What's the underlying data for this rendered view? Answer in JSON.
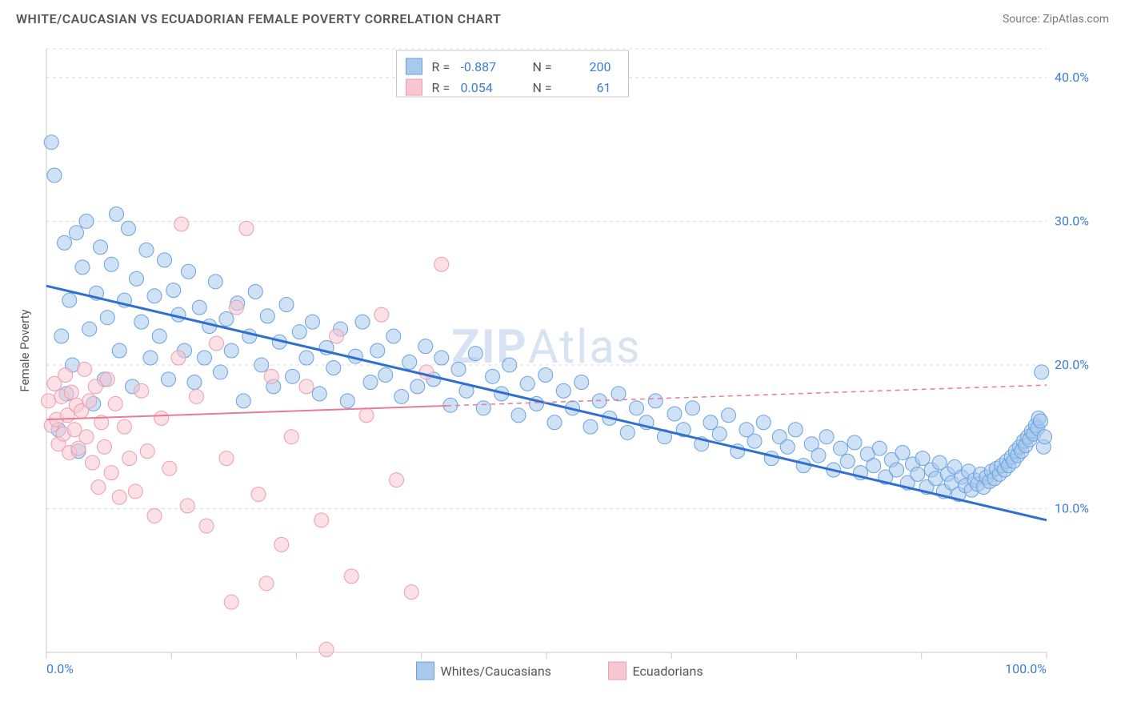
{
  "title": "WHITE/CAUCASIAN VS ECUADORIAN FEMALE POVERTY CORRELATION CHART",
  "source_label": "Source: ",
  "source_name": "ZipAtlas.com",
  "watermark_a": "ZIP",
  "watermark_b": "Atlas",
  "chart": {
    "type": "scatter",
    "ylabel": "Female Poverty",
    "xlim": [
      0,
      100
    ],
    "ylim": [
      0,
      42
    ],
    "yticks": [
      10,
      20,
      30,
      40
    ],
    "ytick_labels": [
      "10.0%",
      "20.0%",
      "30.0%",
      "40.0%"
    ],
    "xtick_labels": [
      "0.0%",
      "100.0%"
    ],
    "xtick_positions": [
      0,
      12.5,
      25,
      37.5,
      50,
      62.5,
      75,
      87.5,
      100
    ],
    "background_color": "#ffffff",
    "grid_color": "#dcdcdc",
    "border_color": "#c8c8c8",
    "series": [
      {
        "name": "Whites/Caucasians",
        "marker_fill": "#a8c8ec",
        "marker_stroke": "#6aa2de",
        "marker_fill_opacity": 0.55,
        "marker_radius": 9,
        "line_color": "#2f6fd0",
        "line_width": 3,
        "R": -0.887,
        "N": 200,
        "trend": {
          "x0": 0,
          "y0": 25.5,
          "x1": 100,
          "y1": 9.2,
          "solid_until": 100
        },
        "points": [
          [
            0.5,
            35.5
          ],
          [
            0.8,
            33.2
          ],
          [
            1.2,
            15.5
          ],
          [
            1.5,
            22
          ],
          [
            1.8,
            28.5
          ],
          [
            2,
            18
          ],
          [
            2.3,
            24.5
          ],
          [
            2.6,
            20
          ],
          [
            3,
            29.2
          ],
          [
            3.2,
            14
          ],
          [
            3.6,
            26.8
          ],
          [
            4,
            30
          ],
          [
            4.3,
            22.5
          ],
          [
            4.7,
            17.3
          ],
          [
            5,
            25
          ],
          [
            5.4,
            28.2
          ],
          [
            5.8,
            19
          ],
          [
            6.1,
            23.3
          ],
          [
            6.5,
            27
          ],
          [
            7,
            30.5
          ],
          [
            7.3,
            21
          ],
          [
            7.8,
            24.5
          ],
          [
            8.2,
            29.5
          ],
          [
            8.6,
            18.5
          ],
          [
            9,
            26
          ],
          [
            9.5,
            23
          ],
          [
            10,
            28
          ],
          [
            10.4,
            20.5
          ],
          [
            10.8,
            24.8
          ],
          [
            11.3,
            22
          ],
          [
            11.8,
            27.3
          ],
          [
            12.2,
            19
          ],
          [
            12.7,
            25.2
          ],
          [
            13.2,
            23.5
          ],
          [
            13.8,
            21
          ],
          [
            14.2,
            26.5
          ],
          [
            14.8,
            18.8
          ],
          [
            15.3,
            24
          ],
          [
            15.8,
            20.5
          ],
          [
            16.3,
            22.7
          ],
          [
            16.9,
            25.8
          ],
          [
            17.4,
            19.5
          ],
          [
            18,
            23.2
          ],
          [
            18.5,
            21
          ],
          [
            19.1,
            24.3
          ],
          [
            19.7,
            17.5
          ],
          [
            20.3,
            22
          ],
          [
            20.9,
            25.1
          ],
          [
            21.5,
            20
          ],
          [
            22.1,
            23.4
          ],
          [
            22.7,
            18.5
          ],
          [
            23.3,
            21.6
          ],
          [
            24,
            24.2
          ],
          [
            24.6,
            19.2
          ],
          [
            25.3,
            22.3
          ],
          [
            26,
            20.5
          ],
          [
            26.6,
            23
          ],
          [
            27.3,
            18
          ],
          [
            28,
            21.2
          ],
          [
            28.7,
            19.8
          ],
          [
            29.4,
            22.5
          ],
          [
            30.1,
            17.5
          ],
          [
            30.9,
            20.6
          ],
          [
            31.6,
            23
          ],
          [
            32.4,
            18.8
          ],
          [
            33.1,
            21
          ],
          [
            33.9,
            19.3
          ],
          [
            34.7,
            22
          ],
          [
            35.5,
            17.8
          ],
          [
            36.3,
            20.2
          ],
          [
            37.1,
            18.5
          ],
          [
            37.9,
            21.3
          ],
          [
            38.7,
            19
          ],
          [
            39.5,
            20.5
          ],
          [
            40.4,
            17.2
          ],
          [
            41.2,
            19.7
          ],
          [
            42,
            18.2
          ],
          [
            42.9,
            20.8
          ],
          [
            43.7,
            17
          ],
          [
            44.6,
            19.2
          ],
          [
            45.5,
            18
          ],
          [
            46.3,
            20
          ],
          [
            47.2,
            16.5
          ],
          [
            48.1,
            18.7
          ],
          [
            49,
            17.3
          ],
          [
            49.9,
            19.3
          ],
          [
            50.8,
            16
          ],
          [
            51.7,
            18.2
          ],
          [
            52.6,
            17
          ],
          [
            53.5,
            18.8
          ],
          [
            54.4,
            15.7
          ],
          [
            55.3,
            17.5
          ],
          [
            56.3,
            16.3
          ],
          [
            57.2,
            18
          ],
          [
            58.1,
            15.3
          ],
          [
            59,
            17
          ],
          [
            60,
            16
          ],
          [
            60.9,
            17.5
          ],
          [
            61.8,
            15
          ],
          [
            62.8,
            16.6
          ],
          [
            63.7,
            15.5
          ],
          [
            64.6,
            17
          ],
          [
            65.5,
            14.5
          ],
          [
            66.4,
            16
          ],
          [
            67.3,
            15.2
          ],
          [
            68.2,
            16.5
          ],
          [
            69.1,
            14
          ],
          [
            70,
            15.5
          ],
          [
            70.8,
            14.7
          ],
          [
            71.7,
            16
          ],
          [
            72.5,
            13.5
          ],
          [
            73.3,
            15
          ],
          [
            74.1,
            14.3
          ],
          [
            74.9,
            15.5
          ],
          [
            75.7,
            13
          ],
          [
            76.5,
            14.5
          ],
          [
            77.2,
            13.7
          ],
          [
            78,
            15
          ],
          [
            78.7,
            12.7
          ],
          [
            79.4,
            14.2
          ],
          [
            80.1,
            13.3
          ],
          [
            80.8,
            14.6
          ],
          [
            81.4,
            12.5
          ],
          [
            82.1,
            13.8
          ],
          [
            82.7,
            13
          ],
          [
            83.3,
            14.2
          ],
          [
            83.9,
            12.2
          ],
          [
            84.5,
            13.4
          ],
          [
            85,
            12.7
          ],
          [
            85.6,
            13.9
          ],
          [
            86.1,
            11.8
          ],
          [
            86.6,
            13.1
          ],
          [
            87.1,
            12.4
          ],
          [
            87.6,
            13.5
          ],
          [
            88,
            11.5
          ],
          [
            88.5,
            12.7
          ],
          [
            88.9,
            12.1
          ],
          [
            89.3,
            13.2
          ],
          [
            89.7,
            11.2
          ],
          [
            90.1,
            12.4
          ],
          [
            90.5,
            11.8
          ],
          [
            90.8,
            12.9
          ],
          [
            91.2,
            11
          ],
          [
            91.5,
            12.2
          ],
          [
            91.9,
            11.6
          ],
          [
            92.2,
            12.6
          ],
          [
            92.5,
            11.3
          ],
          [
            92.8,
            12
          ],
          [
            93.1,
            11.7
          ],
          [
            93.4,
            12.4
          ],
          [
            93.7,
            11.5
          ],
          [
            94,
            12.2
          ],
          [
            94.3,
            11.9
          ],
          [
            94.5,
            12.6
          ],
          [
            94.8,
            12.1
          ],
          [
            95,
            12.8
          ],
          [
            95.3,
            12.4
          ],
          [
            95.5,
            13
          ],
          [
            95.8,
            12.7
          ],
          [
            96,
            13.3
          ],
          [
            96.2,
            13
          ],
          [
            96.5,
            13.6
          ],
          [
            96.7,
            13.3
          ],
          [
            96.9,
            14
          ],
          [
            97.1,
            13.7
          ],
          [
            97.3,
            14.3
          ],
          [
            97.5,
            14
          ],
          [
            97.7,
            14.7
          ],
          [
            97.9,
            14.4
          ],
          [
            98.1,
            15
          ],
          [
            98.3,
            14.8
          ],
          [
            98.5,
            15.4
          ],
          [
            98.7,
            15.2
          ],
          [
            98.9,
            15.8
          ],
          [
            99.1,
            15.6
          ],
          [
            99.2,
            16.3
          ],
          [
            99.4,
            16.1
          ],
          [
            99.5,
            19.5
          ],
          [
            99.7,
            14.3
          ],
          [
            99.8,
            15
          ]
        ]
      },
      {
        "name": "Ecuadorians",
        "marker_fill": "#f7c6d0",
        "marker_stroke": "#ec9db0",
        "marker_fill_opacity": 0.55,
        "marker_radius": 9,
        "line_color": "#e87a9a",
        "line_width": 2,
        "R": 0.054,
        "N": 61,
        "trend": {
          "x0": 0,
          "y0": 16.2,
          "x1": 100,
          "y1": 18.6,
          "solid_until": 40
        },
        "points": [
          [
            0.2,
            17.5
          ],
          [
            0.5,
            15.8
          ],
          [
            0.8,
            18.7
          ],
          [
            1,
            16.2
          ],
          [
            1.2,
            14.5
          ],
          [
            1.5,
            17.8
          ],
          [
            1.7,
            15.2
          ],
          [
            1.9,
            19.3
          ],
          [
            2.1,
            16.5
          ],
          [
            2.3,
            13.9
          ],
          [
            2.5,
            18.1
          ],
          [
            2.8,
            15.5
          ],
          [
            3,
            17.2
          ],
          [
            3.2,
            14.2
          ],
          [
            3.5,
            16.8
          ],
          [
            3.8,
            19.7
          ],
          [
            4,
            15
          ],
          [
            4.3,
            17.5
          ],
          [
            4.6,
            13.2
          ],
          [
            4.9,
            18.5
          ],
          [
            5.2,
            11.5
          ],
          [
            5.5,
            16
          ],
          [
            5.8,
            14.3
          ],
          [
            6.1,
            19
          ],
          [
            6.5,
            12.5
          ],
          [
            6.9,
            17.3
          ],
          [
            7.3,
            10.8
          ],
          [
            7.8,
            15.7
          ],
          [
            8.3,
            13.5
          ],
          [
            8.9,
            11.2
          ],
          [
            9.5,
            18.2
          ],
          [
            10.1,
            14
          ],
          [
            10.8,
            9.5
          ],
          [
            11.5,
            16.3
          ],
          [
            12.3,
            12.8
          ],
          [
            13.2,
            20.5
          ],
          [
            14.1,
            10.2
          ],
          [
            15,
            17.8
          ],
          [
            16,
            8.8
          ],
          [
            17,
            21.5
          ],
          [
            18,
            13.5
          ],
          [
            19,
            24
          ],
          [
            20,
            29.5
          ],
          [
            21.2,
            11
          ],
          [
            22.5,
            19.2
          ],
          [
            23.5,
            7.5
          ],
          [
            24.5,
            15
          ],
          [
            26,
            18.5
          ],
          [
            27.5,
            9.2
          ],
          [
            29,
            22
          ],
          [
            30.5,
            5.3
          ],
          [
            32,
            16.5
          ],
          [
            33.5,
            23.5
          ],
          [
            35,
            12
          ],
          [
            36.5,
            4.2
          ],
          [
            38,
            19.5
          ],
          [
            39.5,
            27
          ],
          [
            18.5,
            3.5
          ],
          [
            22,
            4.8
          ],
          [
            13.5,
            29.8
          ],
          [
            28,
            0.2
          ]
        ]
      }
    ],
    "top_legend": {
      "r_label": "R =",
      "n_label": "N ="
    },
    "bottom_legend": [
      "Whites/Caucasians",
      "Ecuadorians"
    ]
  }
}
